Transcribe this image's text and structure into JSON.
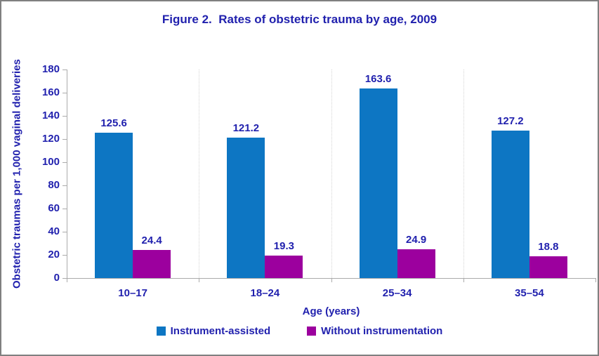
{
  "frame": {
    "background": "#ffffff",
    "border_color": "#808080",
    "text_color": "#2121AE",
    "axis_color": "#ababab",
    "gridline_color": "#d4d4d4"
  },
  "chart_data": {
    "type": "bar",
    "title": "Figure 2.  Rates of obstetric trauma by age, 2009",
    "xlabel": "Age (years)",
    "ylabel": "Obstetric traumas per 1,000 vaginal deliveries",
    "categories": [
      "10–17",
      "18–24",
      "25–34",
      "35–54"
    ],
    "series": [
      {
        "name": "Instrument-assisted",
        "color": "#0D76C3",
        "values": [
          125.6,
          121.2,
          163.6,
          127.2
        ]
      },
      {
        "name": "Without instrumentation",
        "color": "#9C009E",
        "values": [
          24.4,
          19.3,
          24.9,
          18.8
        ]
      }
    ],
    "ylim": [
      0,
      180
    ],
    "yticks": [
      0,
      20,
      40,
      60,
      80,
      100,
      120,
      140,
      160,
      180
    ],
    "data_labels": true,
    "grid": "vertical dotted category separators only",
    "legend_position": "bottom"
  }
}
